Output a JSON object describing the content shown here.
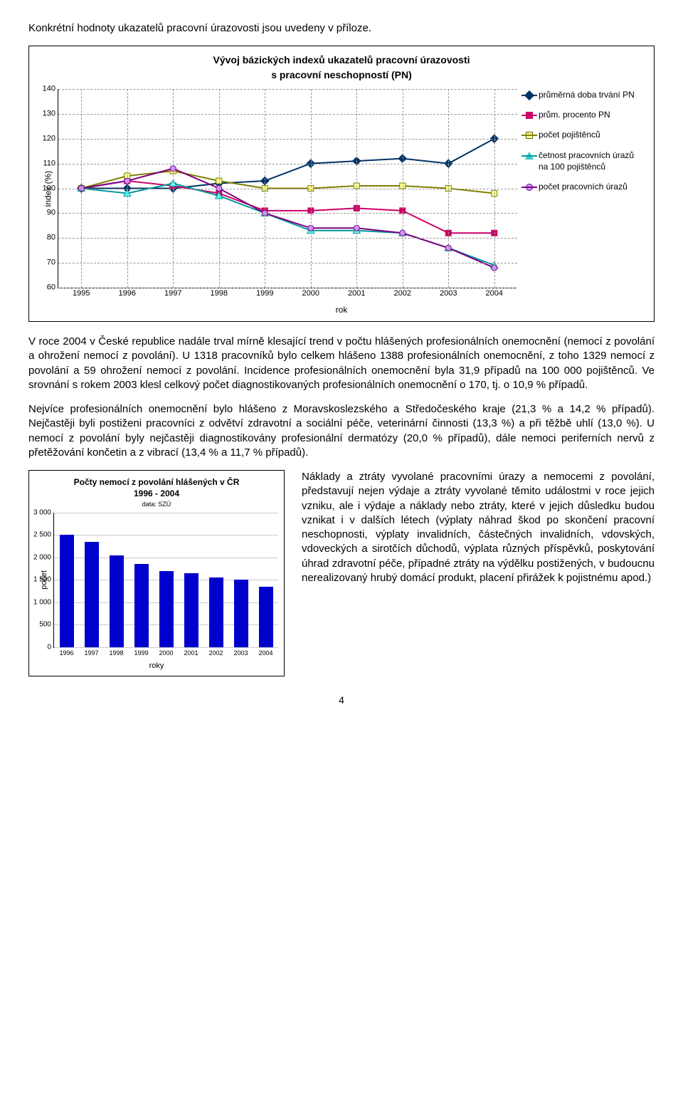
{
  "intro_para": "Konkrétní hodnoty ukazatelů pracovní úrazovosti jsou uvedeny v příloze.",
  "chart1": {
    "type": "line",
    "title_l1": "Vývoj bázických indexů ukazatelů pracovní úrazovosti",
    "title_l2": "s pracovní neschopností (PN)",
    "ylabel": "index (%)",
    "xlabel": "rok",
    "yticks": [
      60,
      70,
      80,
      90,
      100,
      110,
      120,
      130,
      140
    ],
    "ylim": [
      60,
      140
    ],
    "years": [
      1995,
      1996,
      1997,
      1998,
      1999,
      2000,
      2001,
      2002,
      2003,
      2004
    ],
    "legend": [
      {
        "label": "průměrná doba trvání PN",
        "color": "#003366",
        "marker": "diamond"
      },
      {
        "label": "prům. procento PN",
        "color": "#cc0066",
        "marker": "square"
      },
      {
        "label": "počet pojištěnců",
        "color": "#808000",
        "marker": "square-g"
      },
      {
        "label": "četnost pracovních úrazů na 100 pojištěnců",
        "color": "#009999",
        "marker": "triangle"
      },
      {
        "label": "počet pracovních úrazů",
        "color": "#800080",
        "marker": "circle"
      }
    ],
    "series": {
      "avg_duration": [
        100,
        100,
        100,
        102,
        103,
        110,
        111,
        112,
        110,
        120
      ],
      "avg_percent": [
        100,
        103,
        101,
        98,
        91,
        91,
        92,
        91,
        82,
        82
      ],
      "insured_count": [
        100,
        105,
        107,
        103,
        100,
        100,
        101,
        101,
        100,
        98
      ],
      "freq_per100": [
        100,
        98,
        102,
        97,
        90,
        83,
        83,
        82,
        76,
        69
      ],
      "injury_count": [
        100,
        103,
        108,
        100,
        90,
        84,
        84,
        82,
        76,
        68
      ]
    },
    "colors": {
      "avg_duration": "#003366",
      "avg_percent": "#cc0066",
      "insured_count": "#808000",
      "freq_per100": "#009999",
      "injury_count": "#800080"
    },
    "marker_fills": {
      "avg_duration": "#003366",
      "avg_percent": "#cc0066",
      "insured_count": "#ffff99",
      "freq_per100": "#66ffff",
      "injury_count": "#cc99ff"
    },
    "grid_color": "#999999",
    "background": "#ffffff"
  },
  "mid_para1": "V roce 2004 v České republice nadále trval mírně klesající trend v počtu hlášených profesionálních onemocnění (nemocí z povolání a ohrožení nemocí z povolání). U 1318 pracovníků bylo celkem hlášeno 1388 profesionálních onemocnění, z toho 1329 nemocí z povolání a 59 ohrožení nemocí z povolání. Incidence profesionálních onemocnění byla 31,9 případů na 100 000 pojištěnců. Ve srovnání s rokem 2003 klesl celkový počet diagnostikovaných profesionálních onemocnění o 170, tj. o 10,9 % případů.",
  "mid_para2": "Nejvíce profesionálních onemocnění bylo hlášeno z Moravskoslezského a Středočeského kraje (21,3 % a 14,2 % případů). Nejčastěji byli postiženi pracovníci z odvětví zdravotní a sociální péče, veterinární činnosti (13,3 %) a při těžbě uhlí (13,0 %). U nemocí z povolání byly nejčastěji diagnostikovány profesionální dermatózy (20,0 % případů), dále nemoci periferních nervů z přetěžování končetin a z vibrací (13,4 % a 11,7 % případů).",
  "chart2": {
    "type": "bar",
    "title_l1": "Počty nemocí z povolání hlášených v ČR",
    "title_l2": "1996 - 2004",
    "source": "data: SZÚ",
    "ylabel": "počet",
    "xlabel": "roky",
    "yticks": [
      0,
      500,
      1000,
      1500,
      2000,
      2500,
      3000
    ],
    "ylim": [
      0,
      3000
    ],
    "years": [
      1996,
      1997,
      1998,
      1999,
      2000,
      2001,
      2002,
      2003,
      2004
    ],
    "values": [
      2500,
      2350,
      2050,
      1850,
      1700,
      1650,
      1550,
      1500,
      1350
    ],
    "bar_color": "#0000cc",
    "background": "#ffffff"
  },
  "right_para": "Náklady a ztráty vyvolané pracovními úrazy a nemocemi z povolání, představují nejen výdaje a ztráty vyvolané těmito událostmi v roce jejich vzniku, ale i výdaje a náklady nebo ztráty, které v jejich důsledku budou vznikat i v dalších létech (výplaty náhrad škod po skončení pracovní neschopnosti, výplaty invalidních, částečných invalidních, vdovských, vdoveckých a sirotčích důchodů, výplata různých příspěvků, poskytování úhrad zdravotní péče, případné ztráty na výdělku postižených, v budoucnu nerealizovaný hrubý domácí produkt, placení přirážek k pojistnému apod.)",
  "page_number": "4"
}
